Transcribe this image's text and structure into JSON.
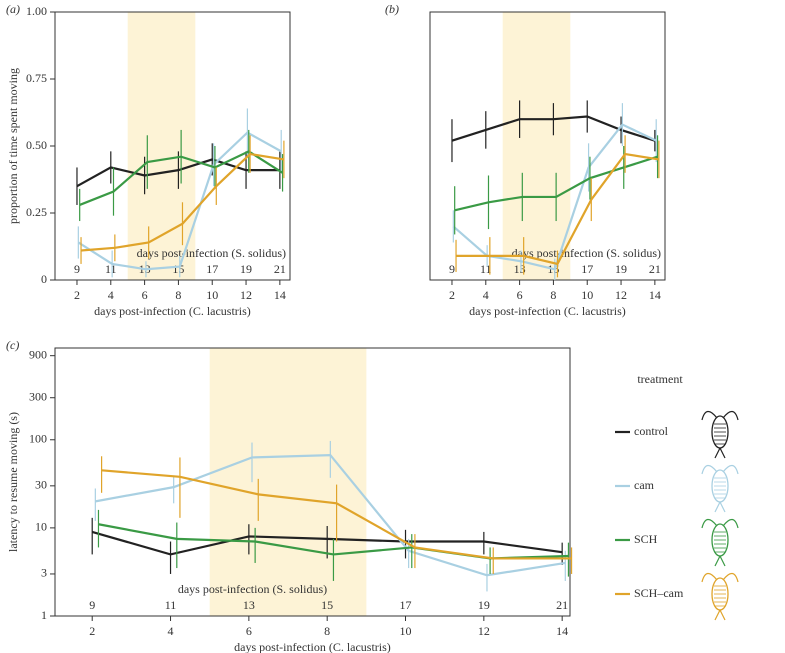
{
  "chart_data": [
    {
      "type": "line",
      "panel_label": "(a)",
      "y_label": "proportion of time spent moving",
      "x_label": "days post-infection (C. lacustris)",
      "x2_label": "days post-infection (S. solidus)",
      "x": [
        2,
        4,
        6,
        8,
        10,
        12,
        14
      ],
      "x2ticks": [
        9,
        11,
        13,
        15,
        17,
        19,
        21
      ],
      "xlim": [
        0.7,
        14.6
      ],
      "ylim": [
        0,
        1
      ],
      "yticks": [
        0,
        0.25,
        {
          "value": 0.5,
          "label": "0.50"
        },
        0.75,
        {
          "value": 1,
          "label": "1.00"
        }
      ],
      "shade_x": [
        5,
        9
      ],
      "shade_color": "#fdf3d6",
      "xtick_color": "#a9d0e2",
      "x2_color": "#3a9a45",
      "series": [
        {
          "name": "control",
          "color": "#222222",
          "values": [
            0.35,
            0.42,
            0.39,
            0.41,
            0.45,
            0.41,
            0.41
          ],
          "errors": [
            0.07,
            0.06,
            0.07,
            0.07,
            0.06,
            0.07,
            0.07
          ]
        },
        {
          "name": "cam",
          "color": "#a9d0e2",
          "values": [
            0.14,
            0.06,
            0.04,
            0.05,
            0.43,
            0.55,
            0.48
          ],
          "errors": [
            0.06,
            0.05,
            0.03,
            0.04,
            0.08,
            0.09,
            0.08
          ]
        },
        {
          "name": "SCH",
          "color": "#3a9a45",
          "values": [
            0.28,
            0.33,
            0.44,
            0.46,
            0.42,
            0.48,
            0.4
          ],
          "errors": [
            0.06,
            0.09,
            0.1,
            0.1,
            0.08,
            0.08,
            0.07
          ]
        },
        {
          "name": "SCH–cam",
          "color": "#e0a42a",
          "values": [
            0.11,
            0.12,
            0.14,
            0.21,
            0.35,
            0.47,
            0.45
          ],
          "errors": [
            0.05,
            0.05,
            0.06,
            0.08,
            0.07,
            0.07,
            0.07
          ]
        }
      ]
    },
    {
      "type": "line",
      "panel_label": "(b)",
      "x_label": "days post-infection (C. lacustris)",
      "x2_label": "days post-infection (S. solidus)",
      "x": [
        2,
        4,
        6,
        8,
        10,
        12,
        14
      ],
      "x2ticks": [
        9,
        11,
        13,
        15,
        17,
        19,
        21
      ],
      "xlim": [
        0.7,
        14.6
      ],
      "ylim": [
        0,
        1
      ],
      "shade_x": [
        5,
        9
      ],
      "shade_color": "#fdf3d6",
      "xtick_color": "#a9d0e2",
      "x2_color": "#3a9a45",
      "series": [
        {
          "name": "control",
          "color": "#222222",
          "values": [
            0.52,
            0.56,
            0.6,
            0.6,
            0.61,
            0.56,
            0.52
          ],
          "errors": [
            0.08,
            0.07,
            0.07,
            0.06,
            0.06,
            0.05,
            0.04
          ]
        },
        {
          "name": "cam",
          "color": "#a9d0e2",
          "values": [
            0.2,
            0.09,
            0.07,
            0.04,
            0.42,
            0.58,
            0.52
          ],
          "errors": [
            0.06,
            0.04,
            0.04,
            0.04,
            0.09,
            0.08,
            0.08
          ]
        },
        {
          "name": "SCH",
          "color": "#3a9a45",
          "values": [
            0.26,
            0.29,
            0.31,
            0.31,
            0.38,
            0.42,
            0.46
          ],
          "errors": [
            0.09,
            0.1,
            0.09,
            0.09,
            0.08,
            0.08,
            0.08
          ]
        },
        {
          "name": "SCH–cam",
          "color": "#e0a42a",
          "values": [
            0.09,
            0.09,
            0.09,
            0.06,
            0.3,
            0.47,
            0.45
          ],
          "errors": [
            0.06,
            0.07,
            0.07,
            0.05,
            0.08,
            0.07,
            0.07
          ]
        }
      ]
    },
    {
      "type": "line",
      "panel_label": "(c)",
      "y_label": "latency to resume moving (s)",
      "x_label": "days post-infection (C. lacustris)",
      "x2_label": "days post-infection (S. solidus)",
      "x": [
        2,
        4,
        6,
        8,
        10,
        12,
        14
      ],
      "x2ticks": [
        9,
        11,
        13,
        15,
        17,
        19,
        21
      ],
      "xlim": [
        1.05,
        14.2
      ],
      "ylim": [
        1,
        1100
      ],
      "log_y": true,
      "yticks": [
        1,
        3,
        10,
        30,
        100,
        300,
        900
      ],
      "shade_x": [
        5,
        9
      ],
      "shade_color": "#fdf3d6",
      "xtick_color": "#a9d0e2",
      "x2_color": "#3a9a45",
      "legend": true,
      "legend_title": "treatment",
      "series": [
        {
          "name": "control",
          "color": "#222222",
          "values": [
            9,
            5,
            8,
            7.5,
            7,
            7,
            5.3
          ],
          "errors": [
            4,
            2,
            3,
            3,
            2.5,
            2,
            1.5
          ]
        },
        {
          "name": "cam",
          "color": "#a9d0e2",
          "values": [
            20,
            29,
            63,
            67,
            5.5,
            2.9,
            4.0
          ],
          "errors": [
            8,
            10,
            30,
            30,
            2,
            1,
            1.5
          ]
        },
        {
          "name": "SCH",
          "color": "#3a9a45",
          "values": [
            11,
            7.5,
            7,
            5,
            6,
            4.5,
            4.8
          ],
          "errors": [
            5,
            4,
            3,
            2.5,
            2.5,
            1.5,
            2
          ]
        },
        {
          "name": "SCH–cam",
          "color": "#e0a42a",
          "values": [
            45,
            38,
            24,
            19,
            6,
            4.5,
            4.5
          ],
          "errors": [
            20,
            25,
            12,
            12,
            2.5,
            1.5,
            1.5
          ]
        }
      ]
    }
  ]
}
